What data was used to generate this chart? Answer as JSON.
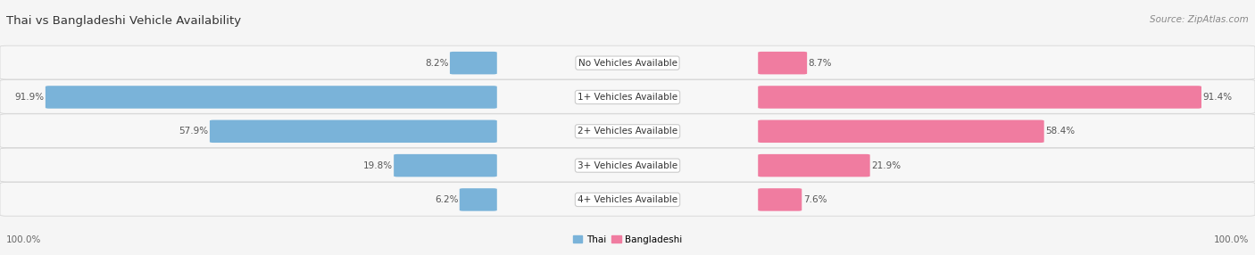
{
  "title": "Thai vs Bangladeshi Vehicle Availability",
  "source": "Source: ZipAtlas.com",
  "categories": [
    "No Vehicles Available",
    "1+ Vehicles Available",
    "2+ Vehicles Available",
    "3+ Vehicles Available",
    "4+ Vehicles Available"
  ],
  "thai_values": [
    8.2,
    91.9,
    57.9,
    19.8,
    6.2
  ],
  "bangladeshi_values": [
    8.7,
    91.4,
    58.4,
    21.9,
    7.6
  ],
  "thai_color": "#7ab3d9",
  "bangladeshi_color": "#f07ca0",
  "background_color": "#f5f5f5",
  "row_colors": [
    "#f0f0f0",
    "#e8e8e8"
  ],
  "legend_thai": "Thai",
  "legend_bangladeshi": "Bangladeshi",
  "max_value": 100.0
}
